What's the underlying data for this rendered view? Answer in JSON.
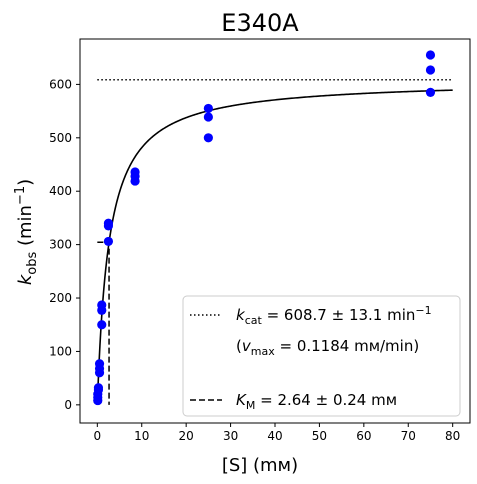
{
  "chart_data": {
    "type": "scatter",
    "title": "E340A",
    "xlabel": "[S] (mм)",
    "ylabel": {
      "base": "k",
      "sub": "obs",
      "unit_open": " (min",
      "sup": "−1",
      "unit_close": ")"
    },
    "xlim": [
      -3.9,
      83.9
    ],
    "ylim": [
      -34,
      685
    ],
    "xticks": [
      0,
      10,
      20,
      30,
      40,
      50,
      60,
      70,
      80
    ],
    "yticks": [
      0,
      100,
      200,
      300,
      400,
      500,
      600
    ],
    "grid": false,
    "legend_position": "lower right",
    "points": [
      {
        "x": 0.1,
        "y": 8
      },
      {
        "x": 0.1,
        "y": 14
      },
      {
        "x": 0.1,
        "y": 20
      },
      {
        "x": 0.25,
        "y": 28
      },
      {
        "x": 0.25,
        "y": 32
      },
      {
        "x": 0.5,
        "y": 60
      },
      {
        "x": 0.5,
        "y": 68
      },
      {
        "x": 0.5,
        "y": 77
      },
      {
        "x": 1.0,
        "y": 150
      },
      {
        "x": 1.0,
        "y": 177
      },
      {
        "x": 1.0,
        "y": 187
      },
      {
        "x": 2.5,
        "y": 306
      },
      {
        "x": 2.5,
        "y": 335
      },
      {
        "x": 2.5,
        "y": 340
      },
      {
        "x": 8.5,
        "y": 419
      },
      {
        "x": 8.5,
        "y": 428
      },
      {
        "x": 8.5,
        "y": 436
      },
      {
        "x": 25,
        "y": 500
      },
      {
        "x": 25,
        "y": 539
      },
      {
        "x": 25,
        "y": 555
      },
      {
        "x": 75,
        "y": 585
      },
      {
        "x": 75,
        "y": 627
      },
      {
        "x": 75,
        "y": 655
      }
    ],
    "fit": {
      "kcat": 608.7,
      "km": 2.64,
      "x_range": [
        0,
        80
      ]
    },
    "kcat_line": {
      "y": 608.7,
      "x_range": [
        0,
        80
      ]
    },
    "km_marker": {
      "x": 2.64,
      "y": 304.35,
      "x_start": 0
    },
    "legend": {
      "kcat": {
        "var": "k",
        "sub": "cat",
        "text": " = 608.7 ± 13.1 min",
        "sup": "−1"
      },
      "vmax": {
        "open": "(",
        "var": "v",
        "sub": "max",
        "text": " = 0.1184 mм/min)"
      },
      "km": {
        "var": "K",
        "sub": "M",
        "text": " = 2.64 ± 0.24 mм"
      }
    },
    "colors": {
      "points": "#0000ff",
      "fit": "#000000",
      "axes": "#000000"
    }
  }
}
